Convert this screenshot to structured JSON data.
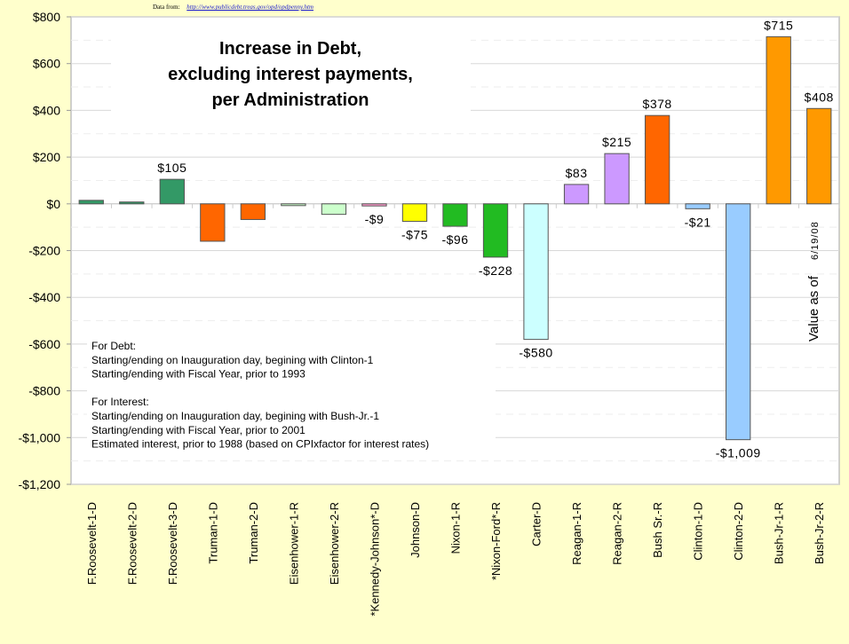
{
  "source": {
    "prefix": "Data from:",
    "url_text": "http://www.publicdebt.treas.gov/opd/opdpenny.htm"
  },
  "chart_data": {
    "type": "bar",
    "title": [
      "Increase in Debt,",
      "excluding interest payments,",
      "per Administration"
    ],
    "xlabel": "",
    "ylabel": "",
    "ylim": [
      -1200,
      800
    ],
    "yticks": [
      800,
      600,
      400,
      200,
      0,
      -200,
      -400,
      -600,
      -800,
      -1000,
      -1200
    ],
    "ytick_labels": [
      "$800",
      "$600",
      "$400",
      "$200",
      "$0",
      "-$200",
      "-$400",
      "-$600",
      "-$800",
      "-$1,000",
      "-$1,200"
    ],
    "grid": true,
    "categories": [
      "F.Roosevelt-1-D",
      "F.Roosevelt-2-D",
      "F.Roosevelt-3-D",
      "Truman-1-D",
      "Truman-2-D",
      "Eisenhower-1-R",
      "Eisenhower-2-R",
      "*Kennedy-Johnson*-D",
      "Johnson-D",
      "Nixon-1-R",
      "*Nixon-Ford*-R",
      "Carter-D",
      "Reagan-1-R",
      "Reagan-2-R",
      "Bush Sr.-R",
      "Clinton-1-D",
      "Clinton-2-D",
      "Bush-Jr-1-R",
      "Bush-Jr-2-R"
    ],
    "values": [
      15,
      8,
      105,
      -160,
      -67,
      -7,
      -45,
      -9,
      -75,
      -96,
      -228,
      -580,
      83,
      215,
      378,
      -21,
      -1009,
      715,
      408
    ],
    "data_labels": [
      "",
      "",
      "$105",
      "",
      "",
      "",
      "",
      "-$9",
      "-$75",
      "-$96",
      "-$228",
      "-$580",
      "$83",
      "$215",
      "$378",
      "-$21",
      "-$1,009",
      "$715",
      "$408"
    ],
    "colors": [
      "#339966",
      "#339966",
      "#339966",
      "#ff6600",
      "#ff6600",
      "#ccffcc",
      "#ccffcc",
      "#ff99cc",
      "#ffff00",
      "#22bb22",
      "#22bb22",
      "#ccffff",
      "#cc99ff",
      "#cc99ff",
      "#ff6600",
      "#99ccff",
      "#99ccff",
      "#ff9900",
      "#ff9900"
    ],
    "annotation_rotated": {
      "main": "Value as of",
      "date": "6/19/08"
    },
    "notes": [
      "For Debt:",
      "Starting/ending on Inauguration day, begining with Clinton-1",
      "Starting/ending with Fiscal Year, prior to 1993",
      "",
      "For Interest:",
      "Starting/ending on Inauguration day, begining with Bush-Jr.-1",
      "Starting/ending with Fiscal Year, prior to 2001",
      "Estimated interest, prior to 1988 (based on CPIxfactor for interest rates)"
    ]
  }
}
